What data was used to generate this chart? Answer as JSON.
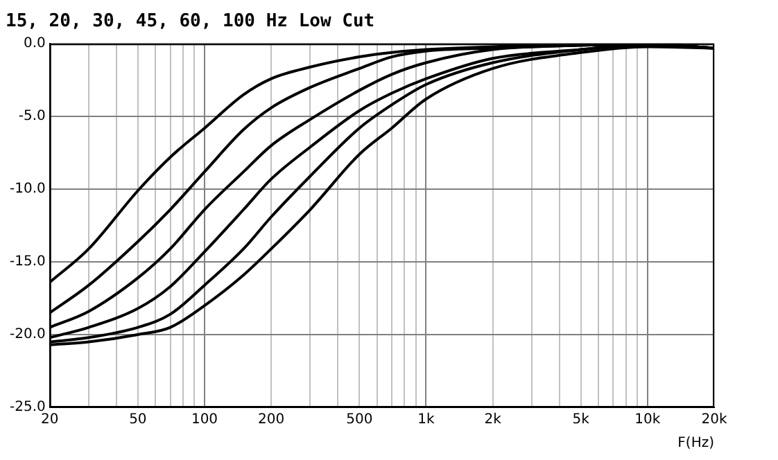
{
  "chart_data": {
    "type": "line",
    "title": "15, 20, 30, 45, 60, 100 Hz Low Cut",
    "xlabel": "F(Hz)",
    "log": "x",
    "grid": true,
    "legend": false,
    "marker": "none",
    "line_style": "solid",
    "x": [
      20,
      30,
      50,
      70,
      100,
      150,
      200,
      300,
      500,
      700,
      1000,
      2000,
      5000,
      10000,
      20000
    ],
    "series": [
      {
        "color": "#000000",
        "values": [
          -16.4,
          -14.1,
          -10.1,
          -7.8,
          -5.8,
          -3.5,
          -2.4,
          -1.6,
          -0.9,
          -0.6,
          -0.4,
          -0.2,
          -0.1,
          0,
          -0.3
        ]
      },
      {
        "color": "#000000",
        "values": [
          -18.5,
          -16.6,
          -13.6,
          -11.4,
          -8.8,
          -5.9,
          -4.4,
          -3.0,
          -1.7,
          -0.9,
          -0.5,
          -0.3,
          -0.1,
          0,
          -0.3
        ]
      },
      {
        "color": "#000000",
        "values": [
          -19.5,
          -18.4,
          -16.1,
          -14.1,
          -11.4,
          -8.8,
          -7.0,
          -5.2,
          -3.2,
          -2.1,
          -1.3,
          -0.4,
          -0.1,
          0,
          -0.3
        ]
      },
      {
        "color": "#000000",
        "values": [
          -20.2,
          -19.5,
          -18.2,
          -16.7,
          -14.3,
          -11.4,
          -9.3,
          -7.1,
          -4.6,
          -3.4,
          -2.4,
          -1.0,
          -0.4,
          0,
          -0.3
        ]
      },
      {
        "color": "#000000",
        "values": [
          -20.5,
          -20.2,
          -19.5,
          -18.6,
          -16.6,
          -14.1,
          -11.9,
          -9.1,
          -5.8,
          -4.2,
          -2.8,
          -1.3,
          -0.4,
          -0.1,
          -0.3
        ]
      },
      {
        "color": "#000000",
        "values": [
          -20.7,
          -20.5,
          -20.0,
          -19.5,
          -18.0,
          -15.9,
          -14.1,
          -11.4,
          -7.6,
          -5.8,
          -3.8,
          -1.7,
          -0.6,
          -0.2,
          -0.3
        ]
      }
    ],
    "xlim": [
      20,
      20000
    ],
    "xticks": [
      20,
      {
        "value": 30,
        "label": null
      },
      {
        "value": 40,
        "label": null
      },
      50,
      {
        "value": 60,
        "label": null
      },
      {
        "value": 70,
        "label": null
      },
      {
        "value": 80,
        "label": null
      },
      {
        "value": 90,
        "label": null
      },
      100,
      200,
      {
        "value": 300,
        "label": null
      },
      {
        "value": 400,
        "label": null
      },
      500,
      {
        "value": 600,
        "label": null
      },
      {
        "value": 700,
        "label": null
      },
      {
        "value": 800,
        "label": null
      },
      {
        "value": 900,
        "label": null
      },
      {
        "value": 1000,
        "label": "1k"
      },
      {
        "value": 2000,
        "label": "2k"
      },
      {
        "value": 3000,
        "label": null
      },
      {
        "value": 4000,
        "label": null
      },
      {
        "value": 5000,
        "label": "5k"
      },
      {
        "value": 6000,
        "label": null
      },
      {
        "value": 7000,
        "label": null
      },
      {
        "value": 8000,
        "label": null
      },
      {
        "value": 9000,
        "label": null
      },
      {
        "value": 10000,
        "label": "10k"
      },
      {
        "value": 20000,
        "label": "20k"
      }
    ],
    "ylim": [
      -25,
      0
    ],
    "yticks": [
      {
        "value": -25,
        "label": "-25.0"
      },
      {
        "value": -20,
        "label": "-20.0"
      },
      {
        "value": -15,
        "label": "-15.0"
      },
      {
        "value": -10,
        "label": "-10.0"
      },
      {
        "value": -5,
        "label": "-5.0"
      },
      {
        "value": 0,
        "label": "0.0"
      }
    ]
  }
}
